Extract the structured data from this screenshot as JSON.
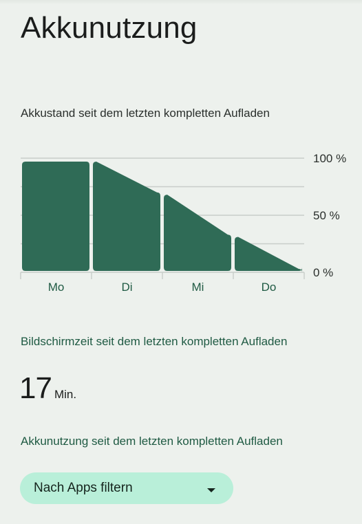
{
  "header": {
    "title": "Akkunutzung"
  },
  "chart": {
    "caption": "Akkustand seit dem letzten kompletten Aufladen"
  },
  "chart_data": {
    "type": "area",
    "title": "Akkustand seit dem letzten kompletten Aufladen",
    "categories": [
      "Mo",
      "Di",
      "Mi",
      "Do"
    ],
    "y_ticks": [
      "100 %",
      "50 %",
      "0 %"
    ],
    "ylim": [
      0,
      100
    ],
    "grid": true,
    "segments": [
      {
        "day": "Mo",
        "start": 97,
        "end": 97
      },
      {
        "day": "Di",
        "start": 97,
        "end": 70
      },
      {
        "day": "Mi",
        "start": 68,
        "end": 33
      },
      {
        "day": "Do",
        "start": 31,
        "end": 3
      }
    ],
    "colors": {
      "fill": "#2f6b56",
      "grid": "#c8cdca",
      "axis_text": "#1f5a43",
      "tick_text": "#2a2f2c"
    }
  },
  "screen_time": {
    "title": "Bildschirmzeit seit dem letzten kompletten Aufladen",
    "value": "17",
    "unit": "Min."
  },
  "usage": {
    "title": "Akkunutzung seit dem letzten kompletten Aufladen"
  },
  "filter": {
    "label": "Nach Apps filtern",
    "icon": "dropdown-arrow-icon"
  }
}
